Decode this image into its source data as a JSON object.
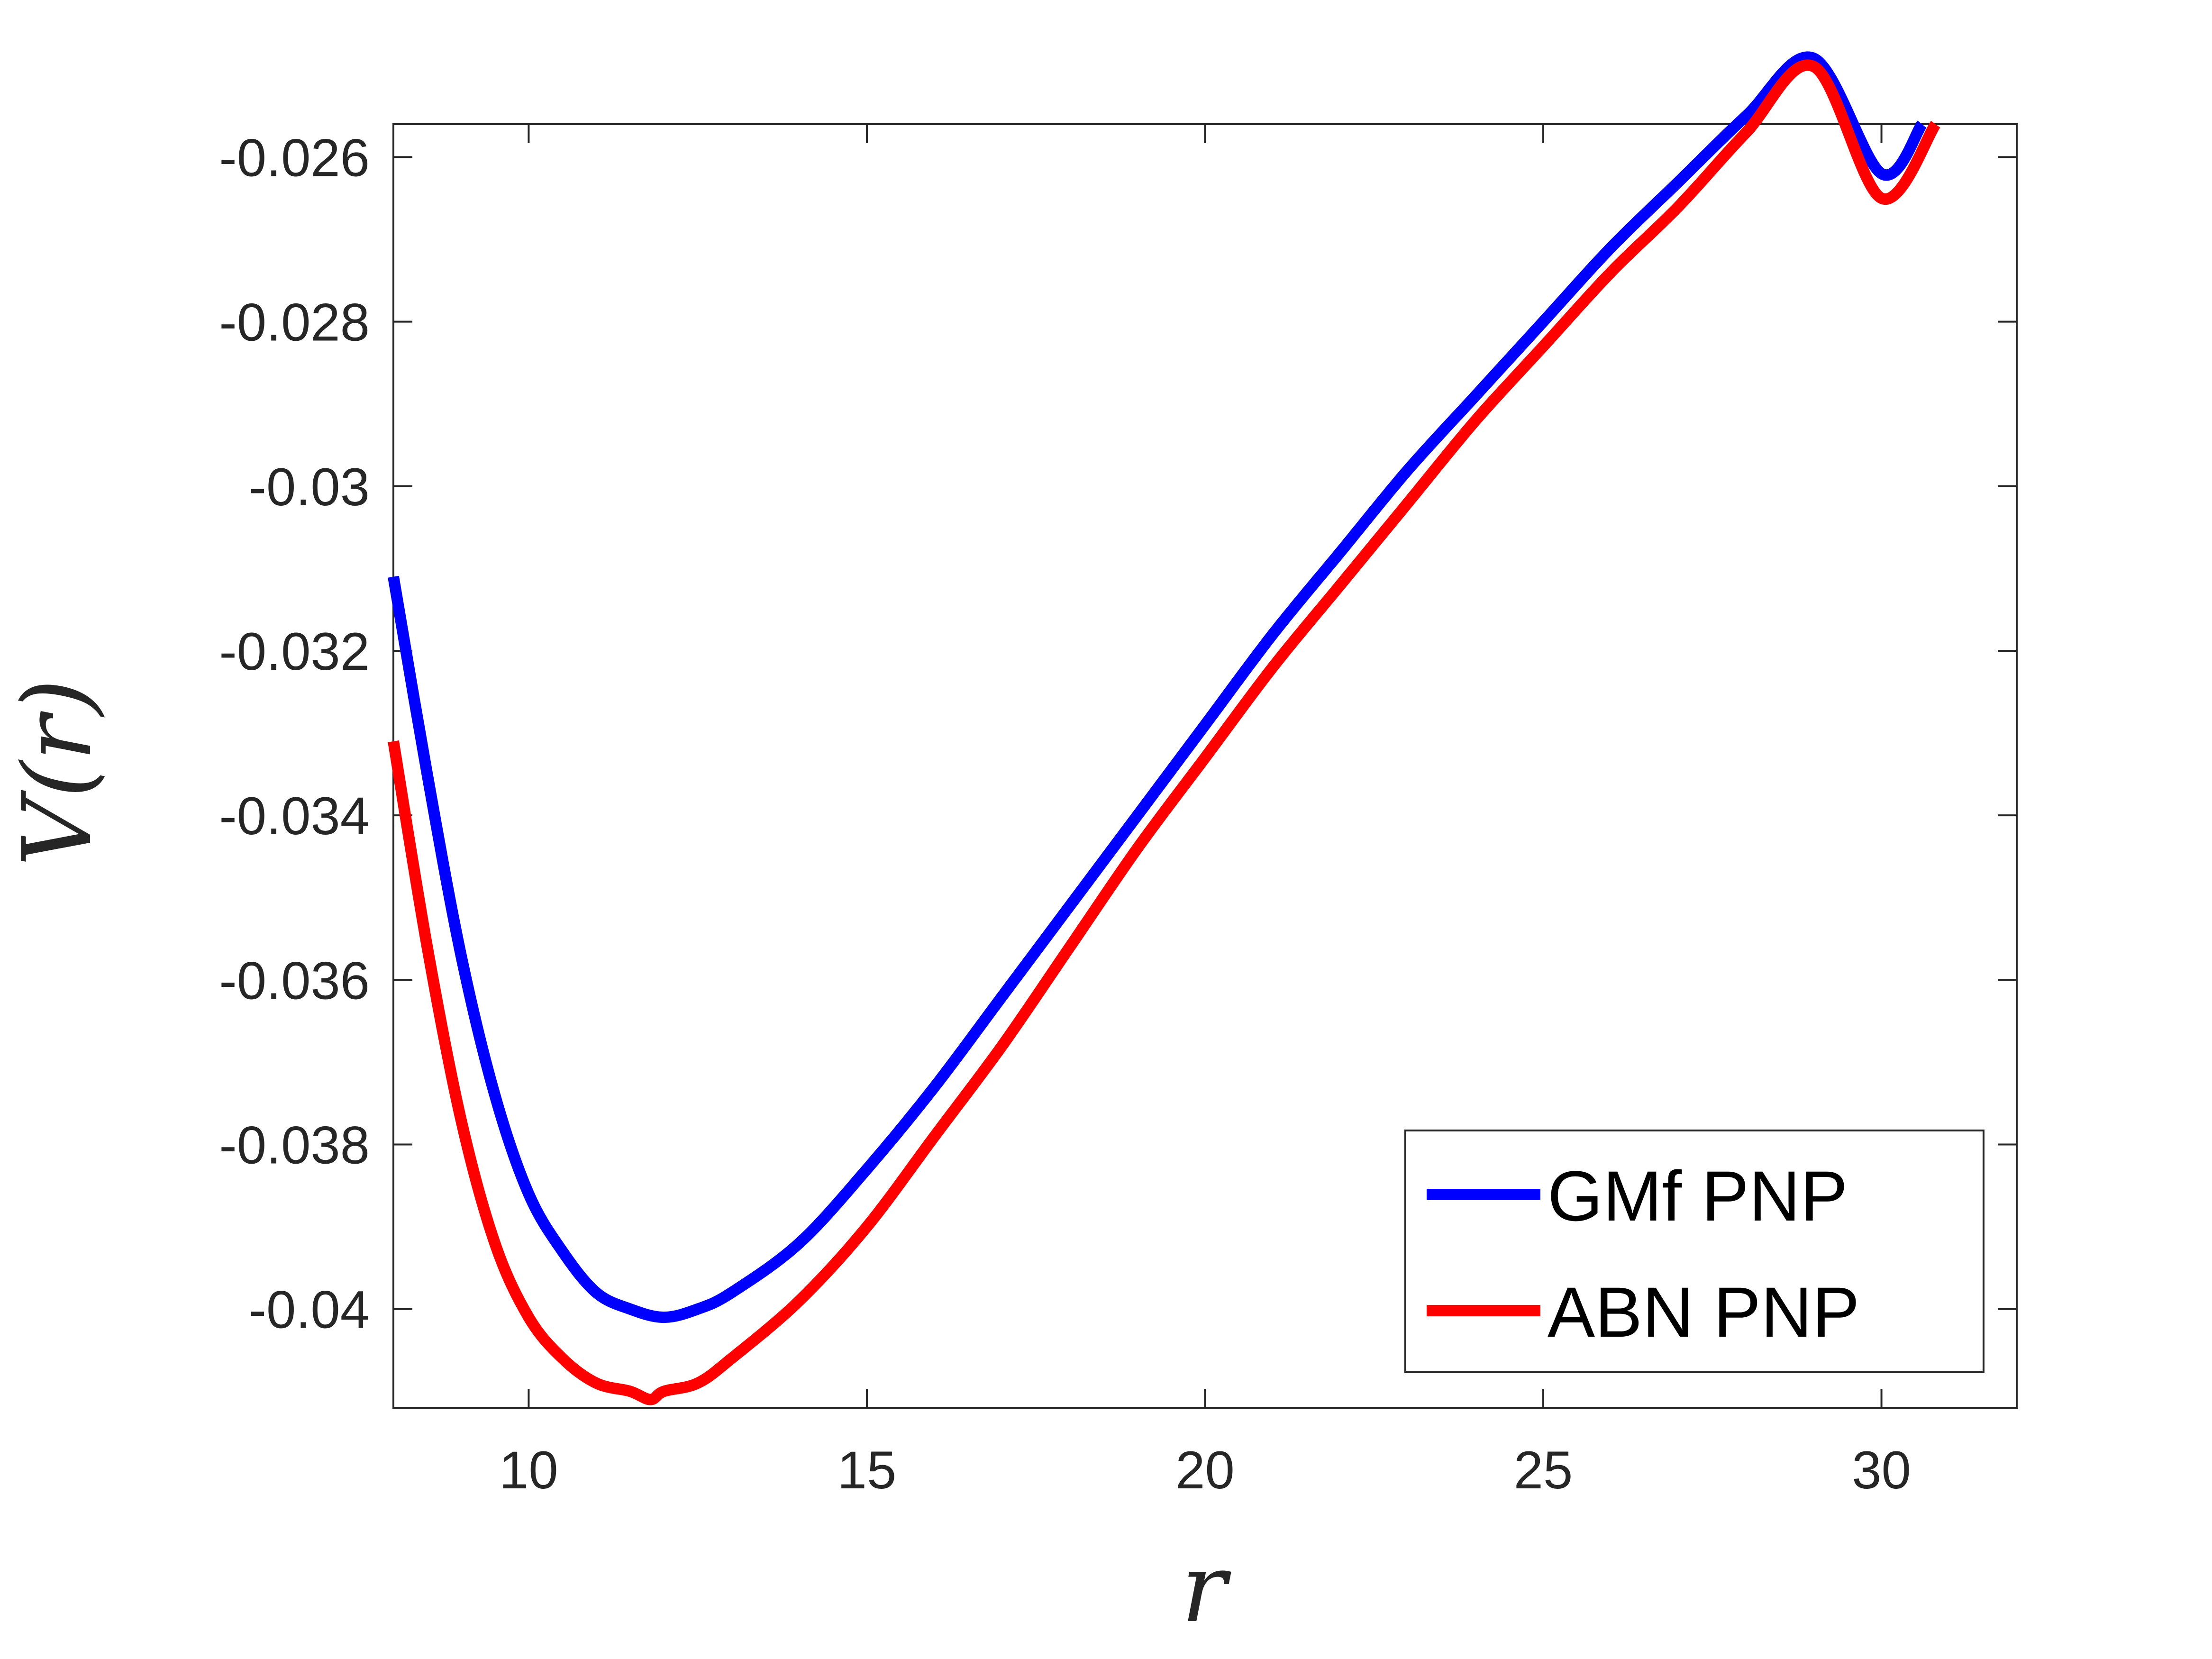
{
  "chart_data": {
    "type": "line",
    "title": "",
    "xlabel": "r",
    "ylabel": "V(r)",
    "xlim": [
      8,
      32
    ],
    "ylim": [
      -0.0412,
      -0.0256
    ],
    "xticks": [
      10,
      15,
      20,
      25,
      30
    ],
    "xtick_labels": [
      "10",
      "15",
      "20",
      "25",
      "30"
    ],
    "yticks": [
      -0.026,
      -0.028,
      -0.03,
      -0.032,
      -0.034,
      -0.036,
      -0.038,
      -0.04
    ],
    "ytick_labels": [
      "-0.026",
      "-0.028",
      "-0.03",
      "-0.032",
      "-0.034",
      "-0.036",
      "-0.038",
      "-0.04"
    ],
    "grid": false,
    "legend_position": "bottom-right",
    "series": [
      {
        "name": "GMf PNP",
        "color": "#0000ff",
        "x": [
          8.0,
          8.5,
          9.0,
          9.5,
          10.0,
          10.5,
          11.0,
          11.5,
          12.0,
          12.5,
          13.0,
          14.0,
          15.0,
          16.0,
          17.0,
          18.0,
          19.0,
          20.0,
          21.0,
          22.0,
          23.0,
          24.0,
          25.0,
          26.0,
          27.0,
          28.0,
          29.0,
          30.0,
          30.6
        ],
        "y": [
          -0.0311,
          -0.0335,
          -0.0357,
          -0.0374,
          -0.0386,
          -0.0393,
          -0.0398,
          -0.04,
          -0.0401,
          -0.04,
          -0.0398,
          -0.0392,
          -0.0383,
          -0.0373,
          -0.0362,
          -0.0351,
          -0.034,
          -0.0329,
          -0.0318,
          -0.0308,
          -0.0298,
          -0.0289,
          -0.028,
          -0.0271,
          -0.0263,
          -0.0255,
          -0.0248,
          -0.0262,
          -0.0256
        ]
      },
      {
        "name": "ABN PNP",
        "color": "#ff0000",
        "x": [
          8.0,
          8.5,
          9.0,
          9.5,
          10.0,
          10.5,
          11.0,
          11.5,
          11.8,
          12.0,
          12.5,
          13.0,
          14.0,
          15.0,
          16.0,
          17.0,
          18.0,
          19.0,
          20.0,
          21.0,
          22.0,
          23.0,
          24.0,
          25.0,
          26.0,
          27.0,
          28.0,
          29.0,
          30.0,
          30.8
        ],
        "y": [
          -0.0331,
          -0.0356,
          -0.0377,
          -0.0392,
          -0.0401,
          -0.0406,
          -0.0409,
          -0.041,
          -0.0411,
          -0.041,
          -0.0409,
          -0.0406,
          -0.0399,
          -0.039,
          -0.0379,
          -0.0368,
          -0.0356,
          -0.0344,
          -0.0333,
          -0.0322,
          -0.0312,
          -0.0302,
          -0.0292,
          -0.0283,
          -0.0274,
          -0.0266,
          -0.0257,
          -0.0249,
          -0.0265,
          -0.0256
        ]
      }
    ]
  }
}
